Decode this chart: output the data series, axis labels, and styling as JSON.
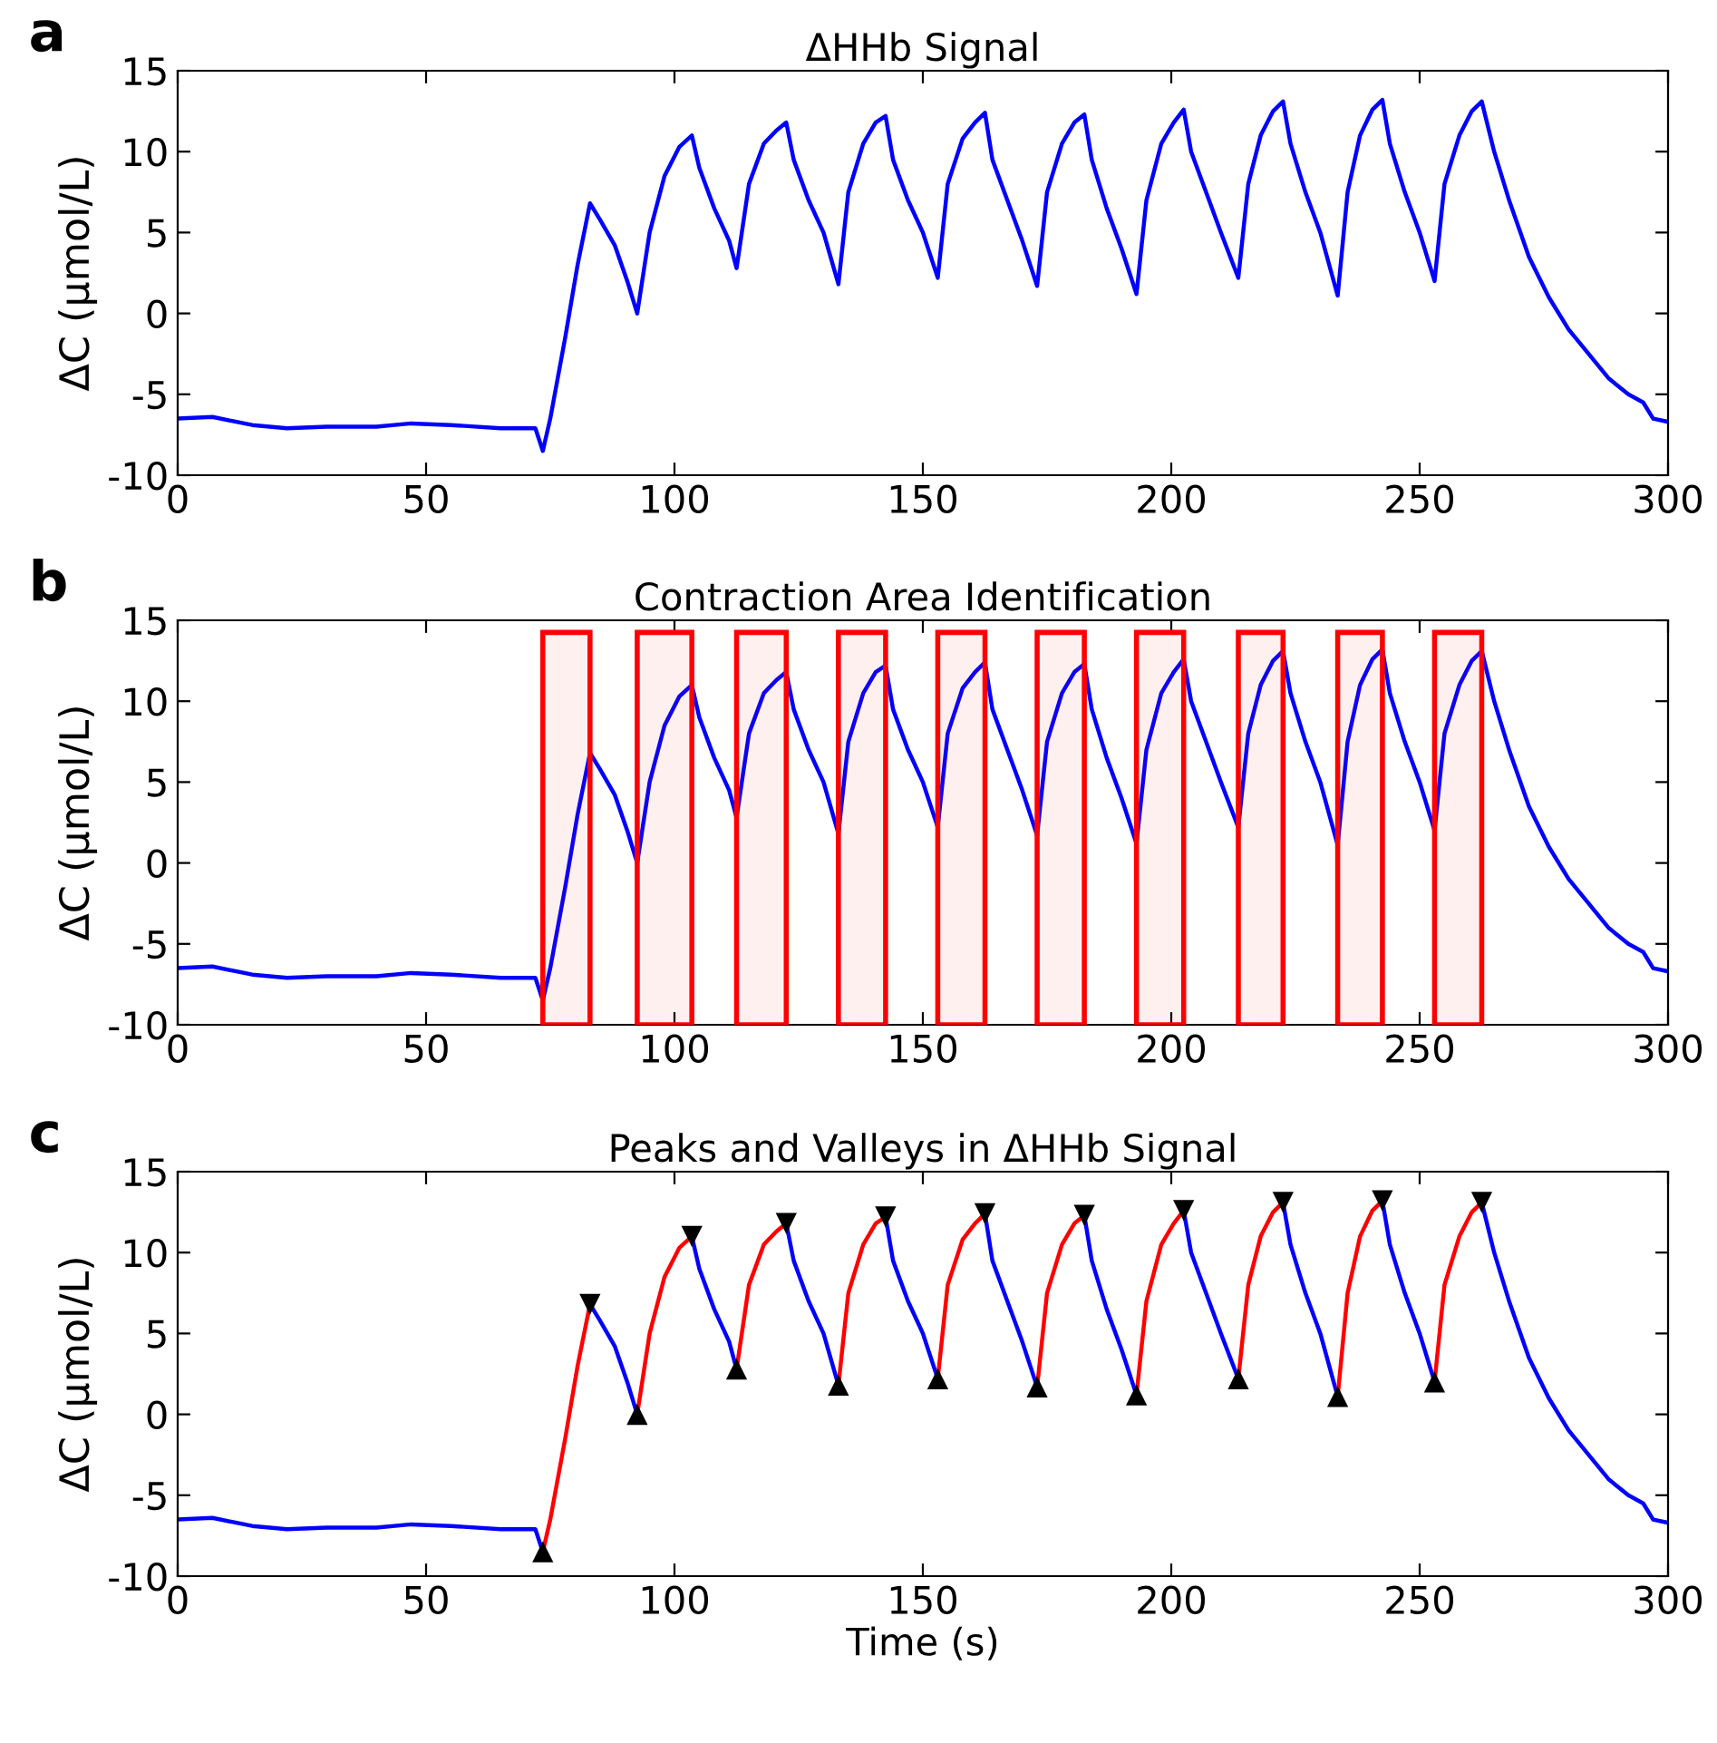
{
  "chart_data": [
    {
      "type": "line",
      "title": "ΔHHb Signal",
      "ylabel": "ΔC (μmol/L)",
      "annotations": [
        "a"
      ],
      "xlim": [
        0,
        300
      ],
      "xticks": [
        0,
        50,
        100,
        150,
        200,
        250,
        300
      ],
      "ylim": [
        -10,
        15
      ],
      "yticks": [
        -10,
        -5,
        0,
        5,
        10,
        15
      ],
      "grid": false,
      "legend": false,
      "x": [
        0,
        7,
        15,
        22,
        30,
        40,
        47,
        55,
        65,
        72,
        73.5,
        75,
        78,
        80.5,
        83,
        85,
        88,
        90.5,
        92.5,
        95,
        98,
        101,
        103.5,
        105,
        108,
        111,
        112.5,
        115,
        118,
        120.5,
        122.5,
        124,
        127,
        130,
        133,
        135,
        138,
        140.5,
        142.5,
        144,
        147,
        150,
        153,
        155,
        158,
        160.5,
        162.5,
        164,
        167,
        170,
        173,
        175,
        178,
        180.5,
        182.5,
        184,
        187,
        190,
        193,
        195,
        198,
        200.5,
        202.5,
        204,
        207,
        210,
        213.5,
        215.5,
        218,
        220.5,
        222.5,
        224,
        227,
        230,
        233.5,
        235.5,
        238,
        240.5,
        242.5,
        244,
        247,
        250,
        253,
        255,
        258,
        260.5,
        262.5,
        265,
        268,
        272,
        276,
        280,
        284,
        288,
        292,
        295,
        297,
        300
      ],
      "series": [
        {
          "color": "#0000ff",
          "values": [
            -6.5,
            -6.4,
            -6.9,
            -7.1,
            -7.0,
            -7.0,
            -6.8,
            -6.9,
            -7.1,
            -7.1,
            -8.5,
            -6.5,
            -1.5,
            3,
            6.8,
            5.8,
            4.2,
            2,
            0,
            5,
            8.5,
            10.3,
            11.0,
            9,
            6.5,
            4.5,
            2.8,
            8,
            10.5,
            11.3,
            11.8,
            9.5,
            7,
            5,
            1.8,
            7.5,
            10.5,
            11.8,
            12.2,
            9.5,
            7,
            5,
            2.2,
            8,
            10.8,
            11.8,
            12.4,
            9.5,
            7,
            4.5,
            1.7,
            7.5,
            10.5,
            11.8,
            12.3,
            9.5,
            6.5,
            4,
            1.2,
            7,
            10.5,
            11.8,
            12.6,
            10,
            7.5,
            5,
            2.2,
            8,
            11,
            12.5,
            13.1,
            10.5,
            7.5,
            5,
            1.1,
            7.5,
            11,
            12.6,
            13.2,
            10.5,
            7.5,
            5,
            2.0,
            8,
            11,
            12.5,
            13.1,
            10,
            7,
            3.5,
            1,
            -1,
            -2.5,
            -4,
            -5,
            -5.5,
            -6.5,
            -6.7
          ]
        }
      ]
    },
    {
      "type": "line",
      "title": "Contraction Area Identification",
      "ylabel": "ΔC (μmol/L)",
      "annotations": [
        "b"
      ],
      "xlim": [
        0,
        300
      ],
      "xticks": [
        0,
        50,
        100,
        150,
        200,
        250,
        300
      ],
      "ylim": [
        -10,
        15
      ],
      "yticks": [
        -10,
        -5,
        0,
        5,
        10,
        15
      ],
      "grid": false,
      "legend": false,
      "x": [
        0,
        7,
        15,
        22,
        30,
        40,
        47,
        55,
        65,
        72,
        73.5,
        75,
        78,
        80.5,
        83,
        85,
        88,
        90.5,
        92.5,
        95,
        98,
        101,
        103.5,
        105,
        108,
        111,
        112.5,
        115,
        118,
        120.5,
        122.5,
        124,
        127,
        130,
        133,
        135,
        138,
        140.5,
        142.5,
        144,
        147,
        150,
        153,
        155,
        158,
        160.5,
        162.5,
        164,
        167,
        170,
        173,
        175,
        178,
        180.5,
        182.5,
        184,
        187,
        190,
        193,
        195,
        198,
        200.5,
        202.5,
        204,
        207,
        210,
        213.5,
        215.5,
        218,
        220.5,
        222.5,
        224,
        227,
        230,
        233.5,
        235.5,
        238,
        240.5,
        242.5,
        244,
        247,
        250,
        253,
        255,
        258,
        260.5,
        262.5,
        265,
        268,
        272,
        276,
        280,
        284,
        288,
        292,
        295,
        297,
        300
      ],
      "series": [
        {
          "color": "#0000ff",
          "values": [
            -6.5,
            -6.4,
            -6.9,
            -7.1,
            -7.0,
            -7.0,
            -6.8,
            -6.9,
            -7.1,
            -7.1,
            -8.5,
            -6.5,
            -1.5,
            3,
            6.8,
            5.8,
            4.2,
            2,
            0,
            5,
            8.5,
            10.3,
            11.0,
            9,
            6.5,
            4.5,
            2.8,
            8,
            10.5,
            11.3,
            11.8,
            9.5,
            7,
            5,
            1.8,
            7.5,
            10.5,
            11.8,
            12.2,
            9.5,
            7,
            5,
            2.2,
            8,
            10.8,
            11.8,
            12.4,
            9.5,
            7,
            4.5,
            1.7,
            7.5,
            10.5,
            11.8,
            12.3,
            9.5,
            6.5,
            4,
            1.2,
            7,
            10.5,
            11.8,
            12.6,
            10,
            7.5,
            5,
            2.2,
            8,
            11,
            12.5,
            13.1,
            10.5,
            7.5,
            5,
            1.1,
            7.5,
            11,
            12.6,
            13.2,
            10.5,
            7.5,
            5,
            2.0,
            8,
            11,
            12.5,
            13.1,
            10,
            7,
            3.5,
            1,
            -1,
            -2.5,
            -4,
            -5,
            -5.5,
            -6.5,
            -6.7
          ]
        }
      ],
      "bands": [
        {
          "axis": "x",
          "from": 73.5,
          "to": 83,
          "color": "#ff0000"
        },
        {
          "axis": "x",
          "from": 92.5,
          "to": 103.5,
          "color": "#ff0000"
        },
        {
          "axis": "x",
          "from": 112.5,
          "to": 122.5,
          "color": "#ff0000"
        },
        {
          "axis": "x",
          "from": 133,
          "to": 142.5,
          "color": "#ff0000"
        },
        {
          "axis": "x",
          "from": 153,
          "to": 162.5,
          "color": "#ff0000"
        },
        {
          "axis": "x",
          "from": 173,
          "to": 182.5,
          "color": "#ff0000"
        },
        {
          "axis": "x",
          "from": 193,
          "to": 202.5,
          "color": "#ff0000"
        },
        {
          "axis": "x",
          "from": 213.5,
          "to": 222.5,
          "color": "#ff0000"
        },
        {
          "axis": "x",
          "from": 233.5,
          "to": 242.5,
          "color": "#ff0000"
        },
        {
          "axis": "x",
          "from": 253,
          "to": 262.5,
          "color": "#ff0000"
        }
      ]
    },
    {
      "type": "line",
      "title": "Peaks and Valleys in ΔHHb Signal",
      "xlabel": "Time (s)",
      "ylabel": "ΔC (μmol/L)",
      "annotations": [
        "c"
      ],
      "xlim": [
        0,
        300
      ],
      "xticks": [
        0,
        50,
        100,
        150,
        200,
        250,
        300
      ],
      "ylim": [
        -10,
        15
      ],
      "yticks": [
        -10,
        -5,
        0,
        5,
        10,
        15
      ],
      "grid": false,
      "legend": false,
      "x": [
        0,
        7,
        15,
        22,
        30,
        40,
        47,
        55,
        65,
        72,
        73.5,
        75,
        78,
        80.5,
        83,
        85,
        88,
        90.5,
        92.5,
        95,
        98,
        101,
        103.5,
        105,
        108,
        111,
        112.5,
        115,
        118,
        120.5,
        122.5,
        124,
        127,
        130,
        133,
        135,
        138,
        140.5,
        142.5,
        144,
        147,
        150,
        153,
        155,
        158,
        160.5,
        162.5,
        164,
        167,
        170,
        173,
        175,
        178,
        180.5,
        182.5,
        184,
        187,
        190,
        193,
        195,
        198,
        200.5,
        202.5,
        204,
        207,
        210,
        213.5,
        215.5,
        218,
        220.5,
        222.5,
        224,
        227,
        230,
        233.5,
        235.5,
        238,
        240.5,
        242.5,
        244,
        247,
        250,
        253,
        255,
        258,
        260.5,
        262.5,
        265,
        268,
        272,
        276,
        280,
        284,
        288,
        292,
        295,
        297,
        300
      ],
      "series": [
        {
          "color": "#0000ff",
          "values": [
            -6.5,
            -6.4,
            -6.9,
            -7.1,
            -7.0,
            -7.0,
            -6.8,
            -6.9,
            -7.1,
            -7.1,
            -8.5,
            null,
            null,
            null,
            6.8,
            5.8,
            4.2,
            2,
            0,
            null,
            null,
            null,
            11.0,
            9,
            6.5,
            4.5,
            2.8,
            null,
            null,
            null,
            11.8,
            9.5,
            7,
            5,
            1.8,
            null,
            null,
            null,
            12.2,
            9.5,
            7,
            5,
            2.2,
            null,
            null,
            null,
            12.4,
            9.5,
            7,
            4.5,
            1.7,
            null,
            null,
            null,
            12.3,
            9.5,
            6.5,
            4,
            1.2,
            null,
            null,
            null,
            12.6,
            10,
            7.5,
            5,
            2.2,
            null,
            null,
            null,
            13.1,
            10.5,
            7.5,
            5,
            1.1,
            null,
            null,
            null,
            13.2,
            10.5,
            7.5,
            5,
            2.0,
            null,
            null,
            null,
            13.1,
            10,
            7,
            3.5,
            1,
            -1,
            -2.5,
            -4,
            -5,
            -5.5,
            -6.5,
            -6.7
          ]
        },
        {
          "color": "#ff0000",
          "values": [
            null,
            null,
            null,
            null,
            null,
            null,
            null,
            null,
            null,
            null,
            -8.5,
            -6.5,
            -1.5,
            3,
            6.8,
            null,
            null,
            null,
            0,
            5,
            8.5,
            10.3,
            11.0,
            null,
            null,
            null,
            2.8,
            8,
            10.5,
            11.3,
            11.8,
            null,
            null,
            null,
            1.8,
            7.5,
            10.5,
            11.8,
            12.2,
            null,
            null,
            null,
            2.2,
            8,
            10.8,
            11.8,
            12.4,
            null,
            null,
            null,
            1.7,
            7.5,
            10.5,
            11.8,
            12.3,
            null,
            null,
            null,
            1.2,
            7,
            10.5,
            11.8,
            12.6,
            null,
            null,
            null,
            2.2,
            8,
            11,
            12.5,
            13.1,
            null,
            null,
            null,
            1.1,
            7.5,
            11,
            12.6,
            13.2,
            null,
            null,
            null,
            2.0,
            8,
            11,
            12.5,
            13.1,
            null,
            null,
            null,
            null,
            null,
            null,
            null,
            null,
            null,
            null,
            null
          ]
        },
        {
          "type": "scatter",
          "marker": "triangle_down",
          "color": "#000000",
          "x": [
            83,
            103.5,
            122.5,
            142.5,
            162.5,
            182.5,
            202.5,
            222.5,
            242.5,
            262.5
          ],
          "values": [
            6.8,
            11.0,
            11.8,
            12.2,
            12.4,
            12.3,
            12.6,
            13.1,
            13.2,
            13.1
          ]
        },
        {
          "type": "scatter",
          "marker": "triangle",
          "color": "#000000",
          "x": [
            73.5,
            92.5,
            112.5,
            133,
            153,
            173,
            193,
            213.5,
            233.5,
            253
          ],
          "values": [
            -8.5,
            0,
            2.8,
            1.8,
            2.2,
            1.7,
            1.2,
            2.2,
            1.1,
            2.0
          ]
        }
      ]
    }
  ]
}
